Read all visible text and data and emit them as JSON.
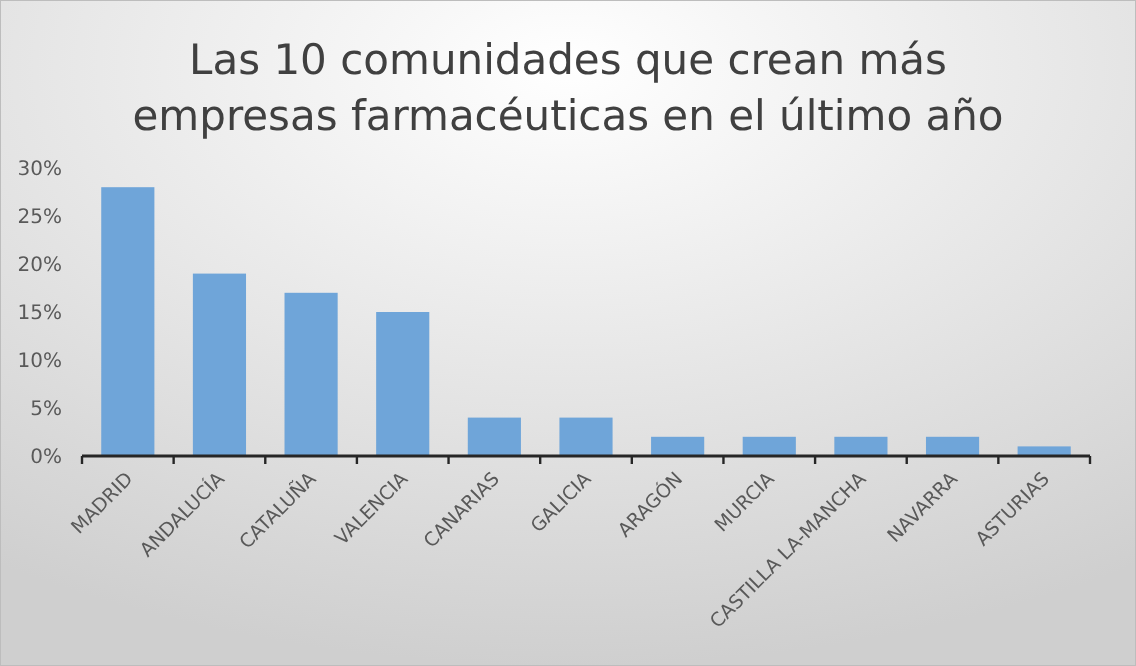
{
  "chart_data": {
    "type": "bar",
    "title": "Las 10 comunidades que crean más empresas farmacéuticas en el último año",
    "categories": [
      "MADRID",
      "ANDALUCÍA",
      "CATALUÑA",
      "VALENCIA",
      "CANARIAS",
      "GALICIA",
      "ARAGÓN",
      "MURCIA",
      "CASTILLA LA-MANCHA",
      "NAVARRA",
      "ASTURIAS"
    ],
    "values": [
      28,
      19,
      17,
      15,
      4,
      4,
      2,
      2,
      2,
      2,
      1
    ],
    "color": "#6fa5d9",
    "ylim": [
      0,
      30
    ],
    "yticks": [
      {
        "value": 0,
        "label": "0%"
      },
      {
        "value": 5,
        "label": "5%"
      },
      {
        "value": 10,
        "label": "10%"
      },
      {
        "value": 15,
        "label": "15%"
      },
      {
        "value": 20,
        "label": "20%"
      },
      {
        "value": 25,
        "label": "25%"
      },
      {
        "value": 30,
        "label": "30%"
      }
    ],
    "grid": false
  }
}
